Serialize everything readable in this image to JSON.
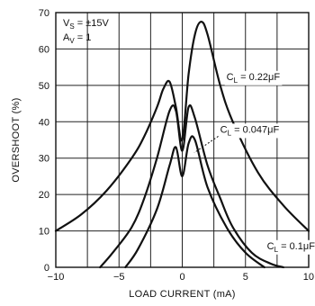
{
  "chart_data": {
    "type": "line",
    "title": "",
    "xlabel": "LOAD CURRENT (mA)",
    "ylabel": "OVERSHOOT (%)",
    "xlim": [
      -10,
      10
    ],
    "ylim": [
      0,
      70
    ],
    "xticks": [
      -10,
      -5,
      0,
      5,
      10
    ],
    "yticks": [
      0,
      10,
      20,
      30,
      40,
      50,
      60,
      70
    ],
    "xtick_labels": [
      "−10",
      "−5",
      "0",
      "5",
      "10"
    ],
    "ytick_labels": [
      "0",
      "10",
      "20",
      "30",
      "40",
      "50",
      "60",
      "70"
    ],
    "grid": true,
    "conditions": {
      "vs": "V",
      "vs_sub": "S",
      "vs_value": " = ±15V",
      "av": "A",
      "av_sub": "V",
      "av_value": " = 1"
    },
    "series": [
      {
        "name": "C_L = 0.22μF",
        "label_main": "C",
        "label_sub": "L",
        "label_value": " = 0.22μF",
        "x": [
          -10,
          -8,
          -6,
          -4,
          -3,
          -2,
          -1.5,
          -1,
          -0.5,
          0,
          0.5,
          1,
          1.5,
          2,
          3,
          4,
          6,
          8,
          10
        ],
        "y": [
          10,
          14.5,
          21,
          30,
          36,
          44,
          49,
          51,
          44,
          35,
          53,
          64,
          67.5,
          64,
          50,
          40,
          26,
          17,
          10
        ]
      },
      {
        "name": "C_L = 0.047μF",
        "label_main": "C",
        "label_sub": "L",
        "label_value": " = 0.047μF",
        "x": [
          -6.5,
          -5.5,
          -4,
          -3,
          -2,
          -1,
          -0.5,
          0,
          0.5,
          1,
          2,
          3,
          4,
          5.5,
          7,
          8
        ],
        "y": [
          0,
          4,
          11,
          19,
          30,
          43,
          43,
          32,
          44,
          41,
          28,
          19,
          11,
          4,
          1,
          0
        ]
      },
      {
        "name": "C_L = 0.1μF",
        "label_main": "C",
        "label_sub": "L",
        "label_value": " = 0.1μF",
        "x": [
          -4.5,
          -3.5,
          -2,
          -1,
          -0.5,
          0,
          0.5,
          1,
          2,
          3.5,
          5,
          6.5
        ],
        "y": [
          0,
          5,
          16,
          28,
          33,
          25,
          34,
          35,
          22,
          11,
          4,
          0
        ]
      }
    ]
  }
}
